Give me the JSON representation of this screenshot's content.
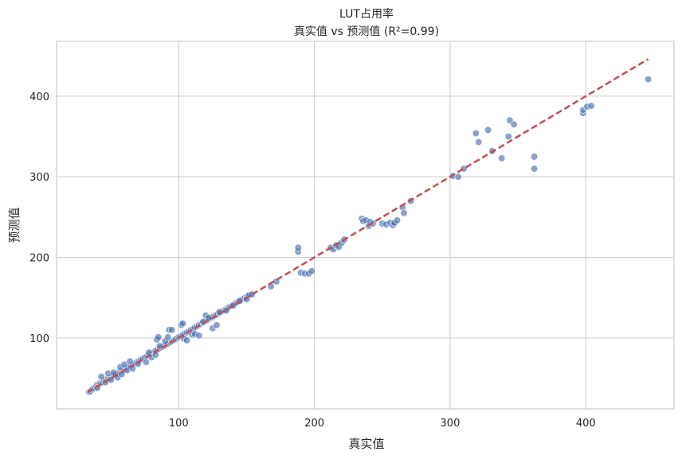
{
  "chart_data": {
    "type": "scatter",
    "title": "LUT占用率",
    "subtitle": "真实值 vs 预测值 (R²=0.99)",
    "xlabel": "真实值",
    "ylabel": "预测值",
    "xlim": [
      10,
      465
    ],
    "ylim": [
      12,
      468
    ],
    "xticks": [
      100,
      200,
      300,
      400
    ],
    "yticks": [
      100,
      200,
      300,
      400
    ],
    "grid": true,
    "colors": {
      "points": "#4c72b0",
      "fit_line": "#c44e52"
    },
    "fit_line": {
      "x": [
        33,
        446
      ],
      "y": [
        33,
        446
      ]
    },
    "series": [
      {
        "x": [
          34,
          35,
          36,
          37,
          38,
          39,
          40,
          41,
          42,
          43,
          44,
          45,
          46,
          47,
          48,
          49,
          50,
          51,
          52,
          53,
          54,
          55,
          56,
          57,
          58,
          59,
          60,
          61,
          62,
          63,
          64,
          65,
          66,
          67,
          68,
          69,
          70,
          71,
          72,
          73,
          74,
          75,
          76,
          77,
          78,
          79,
          80,
          81,
          82,
          83,
          84,
          85,
          86,
          87,
          88,
          89,
          90,
          91,
          92,
          93,
          94,
          95,
          96,
          97,
          98,
          99,
          100,
          101,
          102,
          103,
          104,
          105,
          106,
          107,
          108,
          109,
          110,
          111,
          112,
          113,
          114,
          115,
          116,
          117,
          118,
          119,
          120,
          121,
          122,
          123,
          124,
          125,
          126,
          127,
          128,
          129,
          130,
          131,
          132,
          133,
          134,
          135,
          136,
          137,
          138,
          139,
          140,
          141,
          142,
          143,
          144,
          145,
          146,
          147,
          148,
          149,
          150,
          151,
          152,
          154,
          40,
          43,
          46,
          48,
          50,
          52,
          55,
          57,
          58,
          60,
          62,
          64,
          66,
          70,
          76,
          78,
          80,
          83,
          84,
          85,
          86,
          90,
          92,
          93,
          95,
          102,
          103,
          104,
          106,
          110,
          112,
          115,
          118,
          120,
          122,
          125,
          128,
          130,
          135,
          140,
          145,
          150,
          168,
          172,
          188,
          188,
          190,
          193,
          196,
          198,
          212,
          214,
          216,
          218,
          220,
          222,
          235,
          236,
          238,
          240,
          241,
          243,
          250,
          253,
          256,
          258,
          259,
          261,
          265,
          266,
          271,
          302,
          306,
          310,
          319,
          321,
          328,
          331,
          338,
          343,
          344,
          347,
          362,
          362,
          398,
          398,
          401,
          404,
          446
        ],
        "y": [
          33,
          34,
          36,
          37,
          38,
          40,
          42,
          42,
          44,
          44,
          45,
          47,
          48,
          48,
          50,
          50,
          51,
          53,
          53,
          55,
          55,
          56,
          58,
          58,
          60,
          60,
          62,
          62,
          64,
          64,
          65,
          66,
          67,
          68,
          69,
          70,
          71,
          72,
          73,
          74,
          75,
          76,
          77,
          78,
          79,
          80,
          81,
          82,
          83,
          84,
          85,
          86,
          87,
          88,
          89,
          90,
          91,
          92,
          93,
          94,
          95,
          96,
          97,
          98,
          99,
          100,
          101,
          102,
          103,
          104,
          105,
          106,
          107,
          108,
          109,
          110,
          111,
          112,
          113,
          114,
          115,
          116,
          117,
          118,
          119,
          120,
          121,
          122,
          123,
          124,
          125,
          126,
          127,
          128,
          129,
          130,
          131,
          132,
          133,
          134,
          135,
          136,
          137,
          138,
          139,
          140,
          141,
          142,
          143,
          144,
          145,
          146,
          147,
          148,
          149,
          150,
          151,
          152,
          153,
          154,
          38,
          52,
          45,
          56,
          48,
          57,
          51,
          64,
          55,
          67,
          60,
          71,
          62,
          68,
          70,
          82,
          76,
          79,
          98,
          101,
          90,
          96,
          101,
          110,
          110,
          116,
          118,
          99,
          97,
          104,
          105,
          103,
          120,
          128,
          125,
          112,
          116,
          132,
          134,
          140,
          146,
          148,
          164,
          170,
          207,
          212,
          181,
          180,
          180,
          183,
          212,
          210,
          215,
          213,
          218,
          222,
          248,
          245,
          246,
          239,
          244,
          242,
          242,
          241,
          243,
          240,
          243,
          246,
          262,
          255,
          270,
          301,
          300,
          310,
          354,
          343,
          358,
          332,
          323,
          350,
          370,
          365,
          310,
          325,
          379,
          383,
          387,
          388,
          421
        ]
      }
    ]
  }
}
